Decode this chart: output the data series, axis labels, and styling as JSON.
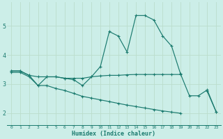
{
  "xlabel": "Humidex (Indice chaleur)",
  "bg_color": "#cceee8",
  "grid_color": "#aaddcc",
  "line_color": "#1a7a6e",
  "xlim": [
    -0.5,
    23.5
  ],
  "ylim": [
    1.6,
    5.8
  ],
  "yticks": [
    2,
    3,
    4,
    5
  ],
  "xticks": [
    0,
    1,
    2,
    3,
    4,
    5,
    6,
    7,
    8,
    9,
    10,
    11,
    12,
    13,
    14,
    15,
    16,
    17,
    18,
    19,
    20,
    21,
    22,
    23
  ],
  "series": [
    {
      "x": [
        0,
        1,
        2,
        3,
        4,
        5,
        6,
        7,
        8,
        9,
        10,
        11,
        12,
        13,
        14,
        15,
        16,
        17,
        18,
        19,
        20,
        21,
        22,
        23
      ],
      "y": [
        3.45,
        3.45,
        3.3,
        2.95,
        3.25,
        3.25,
        3.2,
        3.15,
        2.95,
        3.25,
        3.6,
        4.8,
        4.65,
        4.1,
        5.35,
        5.35,
        5.2,
        4.65,
        4.3,
        3.35,
        2.6,
        2.6,
        2.8,
        2.05
      ]
    },
    {
      "x": [
        0,
        1,
        2,
        3,
        4,
        5,
        6,
        7,
        8,
        9,
        10,
        11,
        12,
        13,
        14,
        15,
        16,
        17,
        18,
        19
      ],
      "y": [
        3.45,
        3.45,
        3.3,
        3.25,
        3.25,
        3.25,
        3.2,
        3.2,
        3.2,
        3.25,
        3.28,
        3.3,
        3.3,
        3.32,
        3.33,
        3.33,
        3.33,
        3.33,
        3.33,
        3.33
      ]
    },
    {
      "x": [
        0,
        1,
        2,
        3,
        4,
        5,
        6,
        7,
        8,
        9,
        10,
        11,
        12,
        13,
        14,
        15,
        16,
        17,
        18,
        19,
        20,
        21,
        22,
        23
      ],
      "y": [
        3.4,
        3.4,
        3.25,
        2.95,
        2.95,
        2.85,
        2.78,
        2.68,
        2.58,
        2.52,
        2.46,
        2.4,
        2.34,
        2.28,
        2.23,
        2.18,
        2.13,
        2.08,
        2.04,
        2.0,
        null,
        null,
        2.75,
        2.05
      ]
    }
  ]
}
